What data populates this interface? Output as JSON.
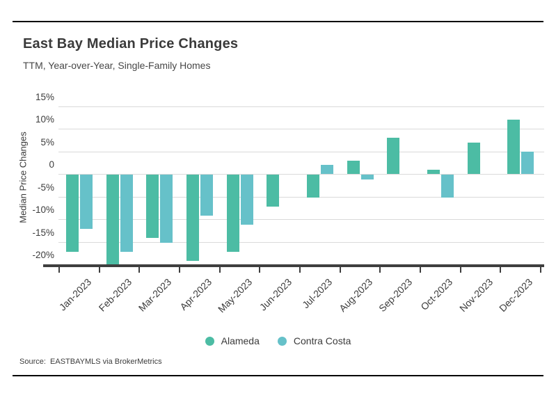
{
  "header": {
    "title": "East Bay Median Price Changes",
    "subtitle": "TTM, Year-over-Year, Single-Family Homes"
  },
  "chart_data": {
    "type": "bar",
    "title": "East Bay Median Price Changes",
    "subtitle": "TTM, Year-over-Year, Single-Family Homes",
    "ylabel": "Median Price Changes",
    "xlabel": "",
    "categories": [
      "Jan-2023",
      "Feb-2023",
      "Mar-2023",
      "Apr-2023",
      "May-2023",
      "Jun-2023",
      "Jul-2023",
      "Aug-2023",
      "Sep-2023",
      "Oct-2023",
      "Nov-2023",
      "Dec-2023"
    ],
    "series": [
      {
        "name": "Alameda",
        "color": "#4cbca4",
        "values": [
          -17,
          -20,
          -14,
          -19,
          -17,
          -7,
          -5,
          3,
          8,
          1,
          7,
          12
        ]
      },
      {
        "name": "Contra Costa",
        "color": "#66c1c9",
        "values": [
          -12,
          -17,
          -15,
          -9,
          -11,
          null,
          2,
          -1,
          null,
          -5,
          null,
          5
        ]
      }
    ],
    "y_ticks": [
      {
        "value": 15,
        "label": "15%"
      },
      {
        "value": 10,
        "label": "10%"
      },
      {
        "value": 5,
        "label": "5%"
      },
      {
        "value": 0,
        "label": "0"
      },
      {
        "value": -5,
        "label": "-5%"
      },
      {
        "value": -10,
        "label": "-10%"
      },
      {
        "value": -15,
        "label": "-15%"
      },
      {
        "value": -20,
        "label": "-20%"
      }
    ],
    "ylim": [
      -21,
      17
    ],
    "grid": true,
    "legend_position": "bottom"
  },
  "footer": {
    "source": "Source:  EASTBAYMLS via BrokerMetrics"
  }
}
